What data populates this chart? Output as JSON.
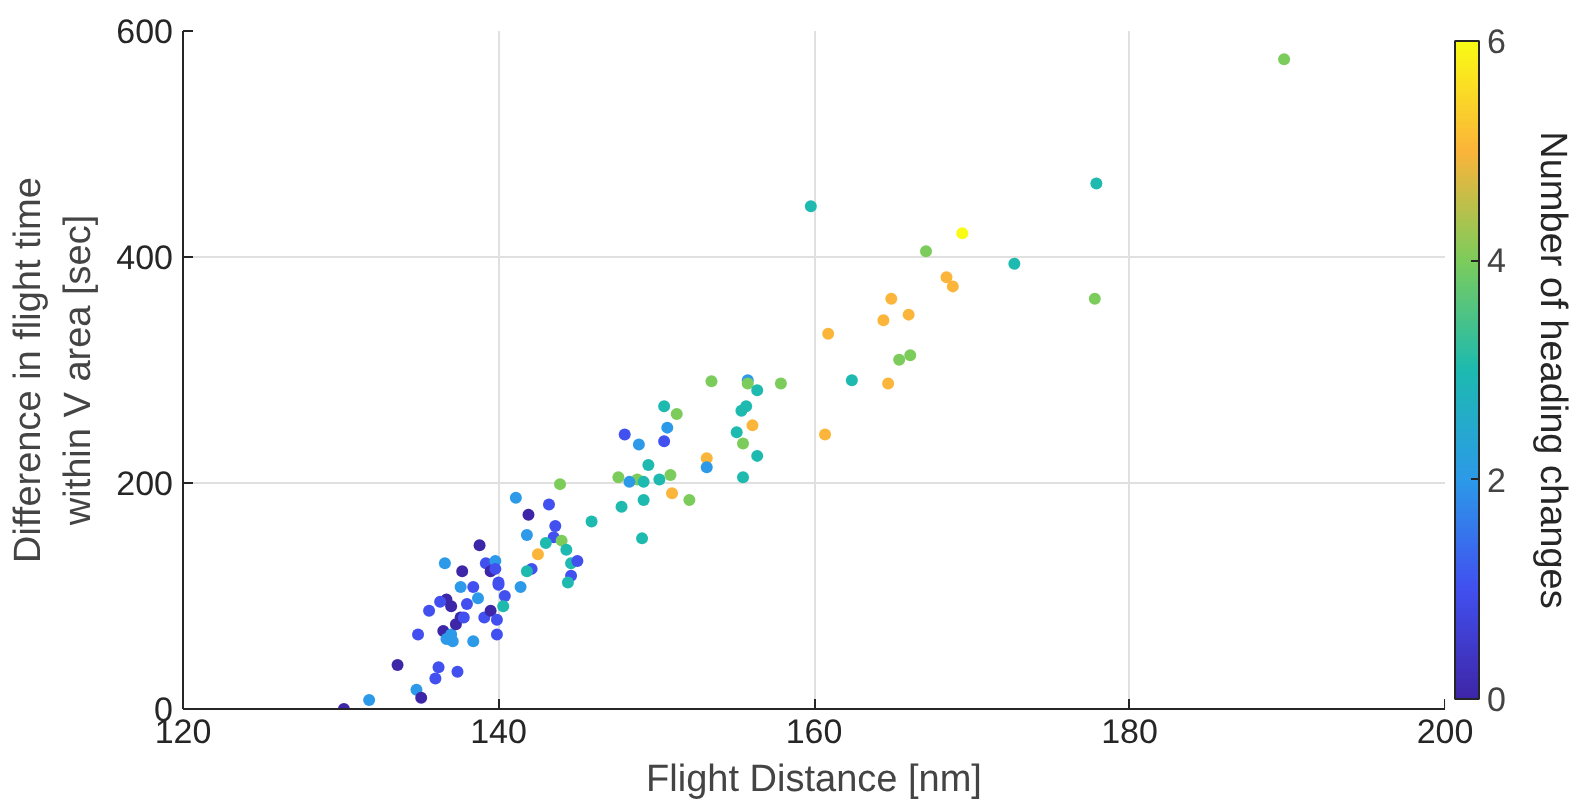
{
  "chart_data": {
    "type": "scatter",
    "xlabel": "Flight Distance [nm]",
    "ylabel": "Difference in flight time\nwithin V area [sec]",
    "clabel": "Number of heading changes",
    "xlim": [
      120,
      200
    ],
    "xticks": [
      120,
      140,
      160,
      180,
      200
    ],
    "ylim": [
      0,
      600
    ],
    "yticks": [
      0,
      200,
      400,
      600
    ],
    "clim": [
      0,
      6
    ],
    "cticks": [
      0,
      2,
      4,
      6
    ],
    "grid": true,
    "marker": "circle",
    "x": [
      130.2,
      131.8,
      133.6,
      134.8,
      135.1,
      136.2,
      136.0,
      137.4,
      134.9,
      135.6,
      136.5,
      136.7,
      137.1,
      137.0,
      137.3,
      137.6,
      137.0,
      136.7,
      136.3,
      137.8,
      138.0,
      138.4,
      138.7,
      139.1,
      138.4,
      139.5,
      139.9,
      139.9,
      140.4,
      140.0,
      140.3,
      137.6,
      136.6,
      137.7,
      138.8,
      139.2,
      139.5,
      139.8,
      139.8,
      140.0,
      141.4,
      142.1,
      141.8,
      141.1,
      141.9,
      141.8,
      143.2,
      143.6,
      143.5,
      143.0,
      143.9,
      144.0,
      144.3,
      142.5,
      144.6,
      145.0,
      144.6,
      144.4,
      145.9,
      147.8,
      147.6,
      148.8,
      148.3,
      153.5,
      155.8,
      155.8,
      156.4,
      157.9,
      150.5,
      151.3,
      148.0,
      148.9,
      150.7,
      150.5,
      155.7,
      155.4,
      155.1,
      156.1,
      155.5,
      156.4,
      153.2,
      153.2,
      155.5,
      149.5,
      149.2,
      150.2,
      150.9,
      151.0,
      152.1,
      149.2,
      149.1,
      160.7,
      162.4,
      164.7,
      160.9,
      164.4,
      164.9,
      165.4,
      166.1,
      166.0,
      167.1,
      168.4,
      168.8,
      169.4,
      172.7,
      177.9,
      177.8,
      159.8,
      189.8
    ],
    "values": [
      0,
      8,
      39,
      17,
      10,
      37,
      27,
      33,
      66,
      87,
      69,
      62,
      60,
      66,
      75,
      81,
      91,
      97,
      95,
      81,
      93,
      108,
      98,
      81,
      60,
      87,
      79,
      66,
      100,
      110,
      91,
      108,
      129,
      122,
      145,
      129,
      122,
      131,
      124,
      112,
      108,
      124,
      122,
      187,
      172,
      154,
      181,
      162,
      152,
      147,
      199,
      149,
      141,
      137,
      129,
      131,
      118,
      112,
      166,
      179,
      205,
      203,
      201,
      290,
      291,
      288,
      282,
      288,
      268,
      261,
      243,
      234,
      249,
      237,
      268,
      264,
      245,
      251,
      235,
      224,
      222,
      214,
      205,
      216,
      201,
      203,
      207,
      191,
      185,
      185,
      151,
      243,
      291,
      288,
      332,
      344,
      363,
      309,
      313,
      349,
      405,
      382,
      374,
      421,
      394,
      465,
      363,
      445,
      575
    ],
    "cvalues": [
      0,
      2,
      0,
      2,
      0,
      1,
      1,
      1,
      1,
      1,
      0,
      2,
      2,
      2,
      0,
      0,
      0,
      0,
      1,
      1,
      1,
      1,
      2,
      1,
      2,
      0,
      1,
      1,
      1,
      1,
      3,
      2,
      2,
      0,
      0,
      1,
      0,
      2,
      1,
      1,
      2,
      1,
      3,
      2,
      0,
      2,
      1,
      1,
      1,
      3,
      4,
      4,
      3,
      5,
      3,
      1,
      1,
      3,
      3,
      3,
      4,
      4,
      2,
      4,
      2,
      4,
      3,
      4,
      3,
      4,
      1,
      2,
      2,
      1,
      3,
      3,
      3,
      5,
      4,
      3,
      5,
      2,
      3,
      3,
      3,
      3,
      4,
      5,
      4,
      3,
      3,
      5,
      3,
      5,
      5,
      5,
      5,
      4,
      4,
      5,
      4,
      5,
      5,
      6,
      3,
      3,
      4,
      3,
      4
    ]
  }
}
